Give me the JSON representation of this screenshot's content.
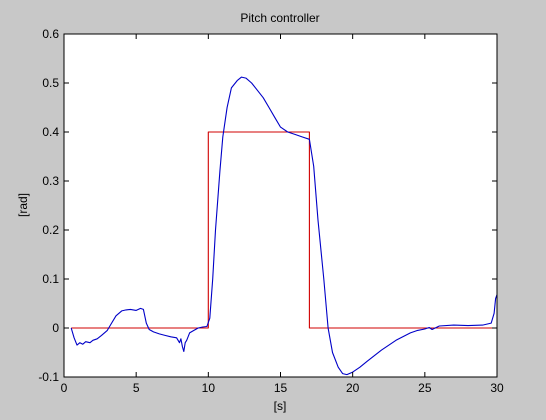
{
  "figure": {
    "background": "#c8c8c8",
    "axes_background": "#ffffff"
  },
  "chart_data": {
    "type": "line",
    "title": "Pitch controller",
    "xlabel": "[s]",
    "ylabel": "[rad]",
    "xlim": [
      0,
      30
    ],
    "ylim": [
      -0.1,
      0.6
    ],
    "xticks": [
      0,
      5,
      10,
      15,
      20,
      25,
      30
    ],
    "yticks": [
      -0.1,
      0,
      0.1,
      0.2,
      0.3,
      0.4,
      0.5,
      0.6
    ],
    "xtick_labels": [
      "0",
      "5",
      "10",
      "15",
      "20",
      "25",
      "30"
    ],
    "ytick_labels": [
      "-0.1",
      "0",
      "0.1",
      "0.2",
      "0.3",
      "0.4",
      "0.5",
      "0.6"
    ],
    "grid": false,
    "legend": "none",
    "series": [
      {
        "color": "#d00000",
        "x": [
          0.5,
          10.0,
          10.0,
          17.0,
          17.0,
          30.0
        ],
        "y": [
          0.0,
          0.0,
          0.4,
          0.4,
          0.0,
          0.0
        ]
      },
      {
        "color": "#0000c8",
        "x": [
          0.5,
          0.7,
          0.9,
          1.1,
          1.3,
          1.5,
          1.8,
          2.0,
          2.3,
          2.6,
          3.0,
          3.3,
          3.6,
          4.0,
          4.3,
          4.6,
          5.0,
          5.3,
          5.5,
          5.7,
          5.9,
          6.2,
          6.6,
          7.0,
          7.4,
          7.8,
          8.0,
          8.1,
          8.2,
          8.3,
          8.4,
          8.5,
          8.7,
          9.0,
          9.3,
          9.6,
          9.9,
          10.1,
          10.3,
          10.5,
          10.8,
          11.0,
          11.3,
          11.6,
          12.0,
          12.3,
          12.6,
          13.0,
          13.4,
          13.8,
          14.2,
          14.6,
          15.0,
          15.5,
          16.0,
          16.5,
          17.0,
          17.3,
          17.6,
          18.0,
          18.3,
          18.6,
          19.0,
          19.3,
          19.6,
          20.0,
          20.5,
          21.0,
          22.0,
          23.0,
          24.0,
          24.5,
          25.0,
          25.3,
          25.5,
          26.0,
          27.0,
          28.0,
          29.0,
          29.6,
          29.8,
          29.9,
          30.0
        ],
        "y": [
          0.0,
          -0.02,
          -0.035,
          -0.03,
          -0.033,
          -0.028,
          -0.03,
          -0.025,
          -0.022,
          -0.015,
          -0.005,
          0.01,
          0.025,
          0.035,
          0.037,
          0.038,
          0.036,
          0.04,
          0.038,
          0.01,
          -0.003,
          -0.008,
          -0.012,
          -0.015,
          -0.018,
          -0.02,
          -0.03,
          -0.022,
          -0.038,
          -0.048,
          -0.03,
          -0.025,
          -0.01,
          -0.005,
          0.0,
          0.002,
          0.003,
          0.02,
          0.1,
          0.2,
          0.32,
          0.39,
          0.45,
          0.49,
          0.505,
          0.512,
          0.51,
          0.5,
          0.485,
          0.47,
          0.45,
          0.43,
          0.41,
          0.4,
          0.395,
          0.39,
          0.385,
          0.33,
          0.22,
          0.1,
          0.0,
          -0.05,
          -0.08,
          -0.093,
          -0.095,
          -0.09,
          -0.08,
          -0.068,
          -0.045,
          -0.025,
          -0.01,
          -0.005,
          -0.002,
          0.001,
          -0.003,
          0.004,
          0.006,
          0.005,
          0.006,
          0.01,
          0.03,
          0.06,
          0.068
        ]
      }
    ]
  }
}
